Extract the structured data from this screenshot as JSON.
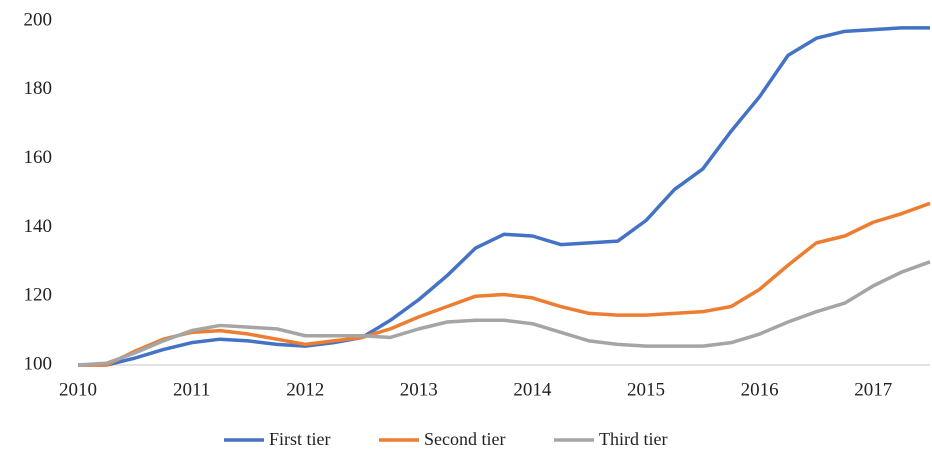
{
  "chart_data": {
    "type": "line",
    "x": [
      2010,
      2010.25,
      2010.5,
      2010.75,
      2011,
      2011.25,
      2011.5,
      2011.75,
      2012,
      2012.25,
      2012.5,
      2012.75,
      2013,
      2013.25,
      2013.5,
      2013.75,
      2014,
      2014.25,
      2014.5,
      2014.75,
      2015,
      2015.25,
      2015.5,
      2015.75,
      2016,
      2016.25,
      2016.5,
      2016.75,
      2017,
      2017.25,
      2017.5
    ],
    "series": [
      {
        "name": "First tier",
        "color": "#4472c4",
        "values": [
          100,
          100,
          102,
          104.5,
          106.5,
          107.5,
          107,
          106,
          105.5,
          106.5,
          108,
          113,
          119,
          126,
          134,
          138,
          137.5,
          135,
          135.5,
          136,
          142,
          151,
          157,
          168,
          178,
          190,
          195,
          197,
          197.5,
          198,
          198
        ]
      },
      {
        "name": "Second tier",
        "color": "#ed7d31",
        "values": [
          100,
          100,
          104,
          107.5,
          109.5,
          110,
          109,
          107.5,
          106,
          107,
          108,
          110.5,
          114,
          117,
          120,
          120.5,
          119.5,
          117,
          115,
          114.5,
          114.5,
          115,
          115.5,
          117,
          122,
          129,
          135.5,
          137.5,
          141.5,
          144,
          147
        ]
      },
      {
        "name": "Third tier",
        "color": "#a5a5a5",
        "values": [
          100,
          100.5,
          103.5,
          107,
          110,
          111.5,
          111,
          110.5,
          108.5,
          108.5,
          108.5,
          108,
          110.5,
          112.5,
          113,
          113,
          112,
          109.5,
          107,
          106,
          105.5,
          105.5,
          105.5,
          106.5,
          109,
          112.5,
          115.5,
          118,
          123,
          127,
          130
        ]
      }
    ],
    "xlim": [
      2010,
      2017.5
    ],
    "xticks": [
      2010,
      2011,
      2012,
      2013,
      2014,
      2015,
      2016,
      2017
    ],
    "ylim": [
      100,
      200
    ],
    "yticks": [
      100,
      120,
      140,
      160,
      180,
      200
    ],
    "grid": false,
    "legend": "bottom"
  }
}
